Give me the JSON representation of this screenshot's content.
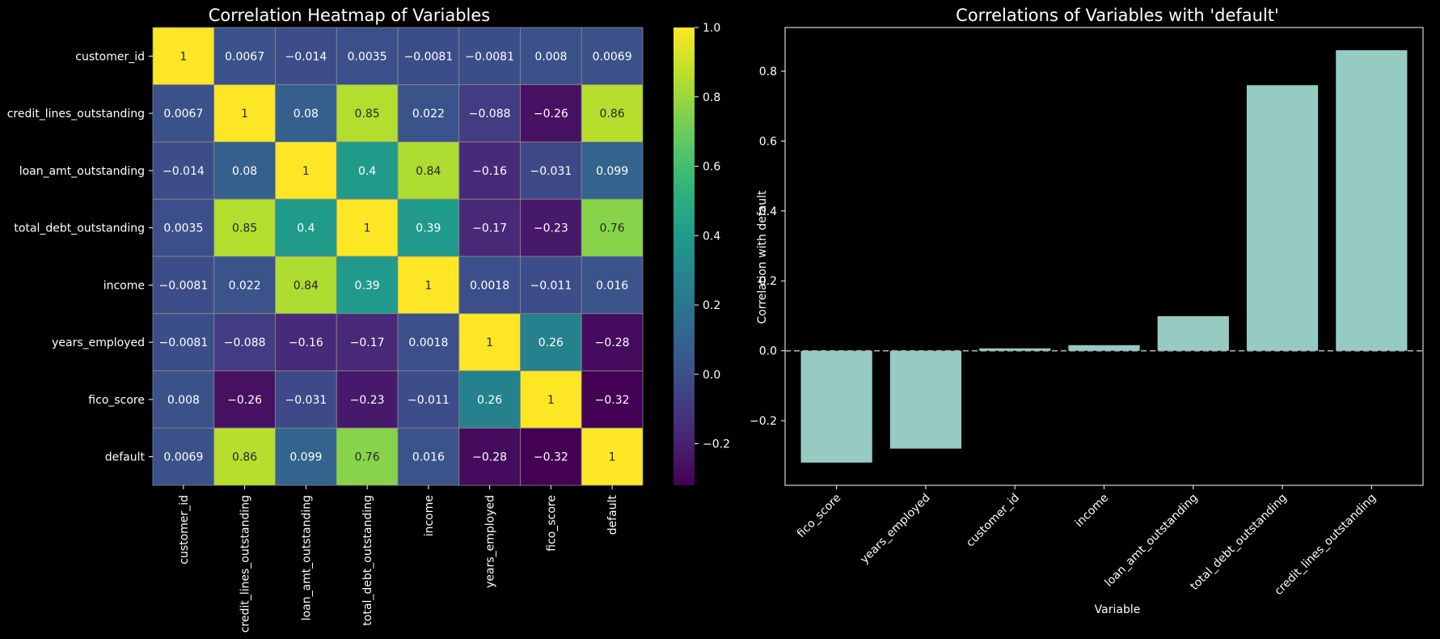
{
  "chart_data": [
    {
      "type": "heatmap",
      "title": "Correlation Heatmap of Variables",
      "row_labels": [
        "customer_id",
        "credit_lines_outstanding",
        "loan_amt_outstanding",
        "total_debt_outstanding",
        "income",
        "years_employed",
        "fico_score",
        "default"
      ],
      "col_labels": [
        "customer_id",
        "credit_lines_outstanding",
        "loan_amt_outstanding",
        "total_debt_outstanding",
        "income",
        "years_employed",
        "fico_score",
        "default"
      ],
      "values": [
        [
          1,
          0.0067,
          -0.014,
          0.0035,
          -0.0081,
          -0.0081,
          0.008,
          0.0069
        ],
        [
          0.0067,
          1,
          0.08,
          0.85,
          0.022,
          -0.088,
          -0.26,
          0.86
        ],
        [
          -0.014,
          0.08,
          1,
          0.4,
          0.84,
          -0.16,
          -0.031,
          0.099
        ],
        [
          0.0035,
          0.85,
          0.4,
          1,
          0.39,
          -0.17,
          -0.23,
          0.76
        ],
        [
          -0.0081,
          0.022,
          0.84,
          0.39,
          1,
          0.0018,
          -0.011,
          0.016
        ],
        [
          -0.0081,
          -0.088,
          -0.16,
          -0.17,
          0.0018,
          1,
          0.26,
          -0.28
        ],
        [
          0.008,
          -0.26,
          -0.031,
          -0.23,
          -0.011,
          0.26,
          1,
          -0.32
        ],
        [
          0.0069,
          0.86,
          0.099,
          0.76,
          0.016,
          -0.28,
          -0.32,
          1
        ]
      ],
      "colormap": "viridis",
      "vmin": -0.32,
      "vmax": 1,
      "colorbar_ticks": [
        1.0,
        0.8,
        0.6,
        0.4,
        0.2,
        0.0,
        -0.2
      ],
      "colorbar_tick_labels": [
        "1.0",
        "0.8",
        "0.6",
        "0.4",
        "0.2",
        "0.0",
        "−0.2"
      ]
    },
    {
      "type": "bar",
      "title": "Correlations of Variables with 'default'",
      "categories": [
        "fico_score",
        "years_employed",
        "customer_id",
        "income",
        "loan_amt_outstanding",
        "total_debt_outstanding",
        "credit_lines_outstanding"
      ],
      "values": [
        -0.32,
        -0.28,
        0.0069,
        0.016,
        0.099,
        0.76,
        0.86
      ],
      "xlabel": "Variable",
      "ylabel": "Correlation with default",
      "ylim": [
        -0.385,
        0.925
      ],
      "yticks": [
        -0.2,
        0.0,
        0.2,
        0.4,
        0.6,
        0.8
      ],
      "ytick_labels": [
        "−0.2",
        "0.0",
        "0.2",
        "0.4",
        "0.6",
        "0.8"
      ],
      "bar_color": "#96cbc2",
      "reference_line": 0,
      "grid": false
    }
  ],
  "theme": {
    "background": "#000000",
    "foreground": "#ffffff",
    "cell_border": "#8a8a8a",
    "reference_line_color": "#b0b0b0"
  }
}
